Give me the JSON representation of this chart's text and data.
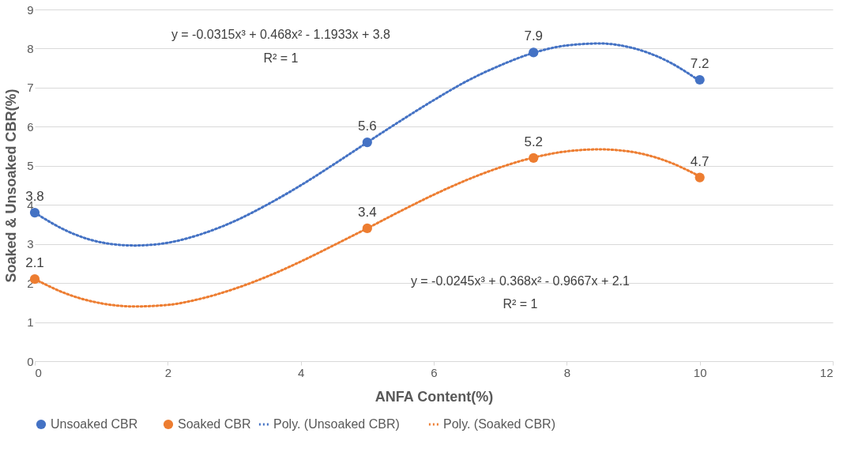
{
  "chart_data": {
    "type": "scatter",
    "xlabel": "ANFA Content(%)",
    "ylabel": "Soaked & Unsoaked CBR(%)",
    "xlim": [
      0,
      12
    ],
    "xticks": [
      0,
      2,
      4,
      6,
      8,
      10,
      12
    ],
    "ylim": [
      0,
      9
    ],
    "yticks": [
      0,
      1,
      2,
      3,
      4,
      5,
      6,
      7,
      8,
      9
    ],
    "grid": "y",
    "legend": "bottom",
    "annotations": [
      "y = -0.0315x³ + 0.468x² - 1.1933x + 3.8",
      "R² = 1",
      "y = -0.0245x³ + 0.368x² - 0.9667x + 2.1",
      "R² = 1"
    ],
    "series": [
      {
        "name": "Unsoaked CBR",
        "marker": "circle",
        "color": "#4472c4",
        "x": [
          0,
          5,
          7.5,
          10
        ],
        "values": [
          3.8,
          5.6,
          7.9,
          7.2
        ],
        "value_labels": [
          "3.8",
          "5.6",
          "7.9",
          "7.2"
        ]
      },
      {
        "name": "Soaked CBR",
        "marker": "circle",
        "color": "#ed7d31",
        "x": [
          0,
          5,
          7.5,
          10
        ],
        "values": [
          2.1,
          3.4,
          5.2,
          4.7
        ],
        "value_labels": [
          "2.1",
          "3.4",
          "5.2",
          "4.7"
        ]
      },
      {
        "name": "Poly. (Unsoaked CBR)",
        "type": "line",
        "line_style": "dotted",
        "color": "#4472c4",
        "x": [
          0,
          0.5,
          1,
          1.5,
          2,
          2.5,
          3,
          3.5,
          4,
          4.5,
          5,
          5.5,
          6,
          6.5,
          7,
          7.5,
          8,
          8.5,
          9,
          9.5,
          10
        ],
        "values": [
          3.8,
          3.32,
          3.04,
          2.96,
          3.03,
          3.25,
          3.58,
          4.01,
          4.5,
          5.04,
          5.6,
          6.15,
          6.68,
          7.17,
          7.57,
          7.89,
          8.08,
          8.13,
          8.01,
          7.69,
          7.17
        ]
      },
      {
        "name": "Poly. (Soaked CBR)",
        "type": "line",
        "line_style": "dotted",
        "color": "#ed7d31",
        "x": [
          0,
          0.5,
          1,
          1.5,
          2,
          2.5,
          3,
          3.5,
          4,
          4.5,
          5,
          5.5,
          6,
          6.5,
          7,
          7.5,
          8,
          8.5,
          9,
          9.5,
          10
        ],
        "values": [
          2.1,
          1.71,
          1.48,
          1.4,
          1.44,
          1.6,
          1.85,
          2.17,
          2.55,
          2.97,
          3.4,
          3.84,
          4.26,
          4.64,
          4.96,
          5.21,
          5.37,
          5.42,
          5.35,
          5.12,
          4.73
        ]
      }
    ]
  }
}
